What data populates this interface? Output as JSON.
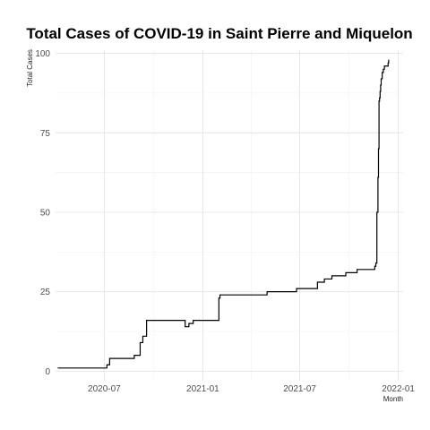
{
  "chart_data": {
    "type": "line",
    "title": "Total Cases of COVID-19 in Saint Pierre and Miquelon",
    "xlabel": "Month",
    "ylabel": "Total Cases",
    "x_ticks": [
      "2020-07",
      "2021-01",
      "2021-07",
      "2022-01"
    ],
    "y_ticks": [
      0,
      25,
      50,
      75,
      100
    ],
    "xlim": [
      "2020-04-01",
      "2022-01-10"
    ],
    "ylim": [
      -3,
      101
    ],
    "grid": true,
    "legend": "none",
    "series": [
      {
        "x": [
          "2020-04-05",
          "2020-07-01",
          "2020-07-06",
          "2020-07-11",
          "2020-08-06",
          "2020-08-26",
          "2020-09-06",
          "2020-09-11",
          "2020-09-18",
          "2020-11-26",
          "2020-11-29",
          "2020-12-06",
          "2020-12-14",
          "2021-01-31",
          "2021-02-02",
          "2021-03-01",
          "2021-04-19",
          "2021-05-01",
          "2021-06-25",
          "2021-08-03",
          "2021-08-16",
          "2021-08-30",
          "2021-09-25",
          "2021-10-16",
          "2021-11-14",
          "2021-11-18",
          "2021-11-20",
          "2021-11-22",
          "2021-11-24",
          "2021-11-25",
          "2021-11-26",
          "2021-11-27",
          "2021-11-28",
          "2021-11-29",
          "2021-11-30",
          "2021-12-02",
          "2021-12-04",
          "2021-12-06",
          "2021-12-11",
          "2021-12-13",
          "2021-12-14"
        ],
        "y": [
          1,
          1,
          2,
          4,
          4,
          5,
          9,
          11,
          16,
          16,
          14,
          15,
          16,
          23,
          24,
          24,
          24,
          25,
          26,
          28,
          29,
          30,
          31,
          32,
          32,
          33,
          34,
          50,
          61,
          70,
          85,
          86,
          88,
          90,
          92,
          94,
          95,
          96,
          96,
          97,
          98
        ]
      }
    ]
  }
}
